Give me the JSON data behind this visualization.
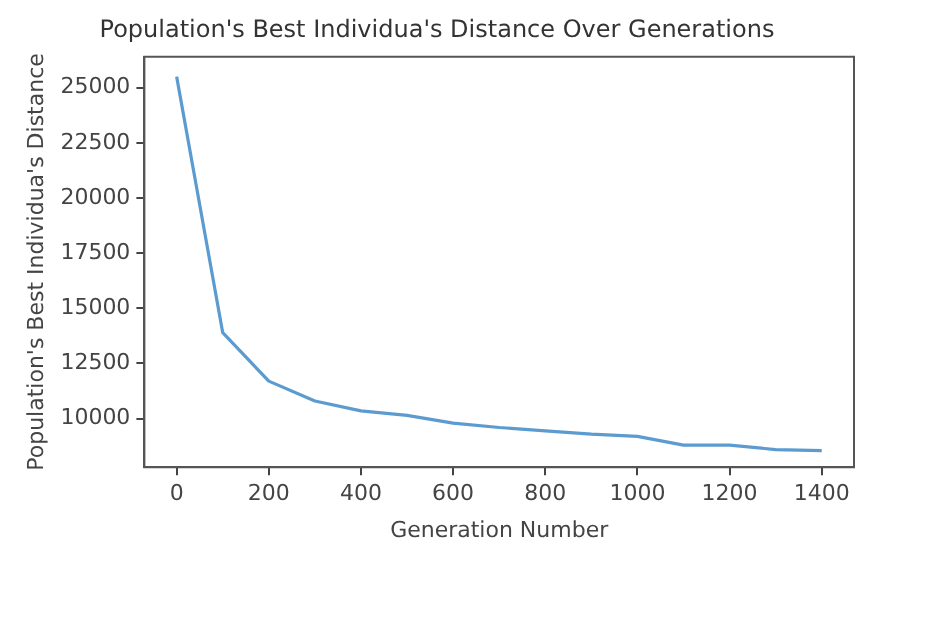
{
  "chart_data": {
    "type": "line",
    "title": "Population's Best Individua's Distance Over Generations",
    "xlabel": "Generation Number",
    "ylabel": "Population's Best Individua's Distance",
    "x": [
      0,
      100,
      200,
      300,
      400,
      500,
      600,
      700,
      800,
      900,
      1000,
      1100,
      1200,
      1300,
      1400
    ],
    "series": [
      {
        "color": "#5b9bd0",
        "values": [
          25500,
          13900,
          11700,
          10800,
          10350,
          10150,
          9800,
          9600,
          9450,
          9300,
          9200,
          8800,
          8800,
          8600,
          8550
        ]
      }
    ],
    "xlim": [
      -70,
      1470
    ],
    "xticks": [
      0,
      200,
      400,
      600,
      800,
      1000,
      1200,
      1400
    ],
    "ylim": [
      7800,
      26400
    ],
    "yticks": [
      10000,
      12500,
      15000,
      17500,
      20000,
      22500,
      25000
    ],
    "grid": false,
    "legend": false,
    "marker": "none",
    "line_style": "solid"
  }
}
